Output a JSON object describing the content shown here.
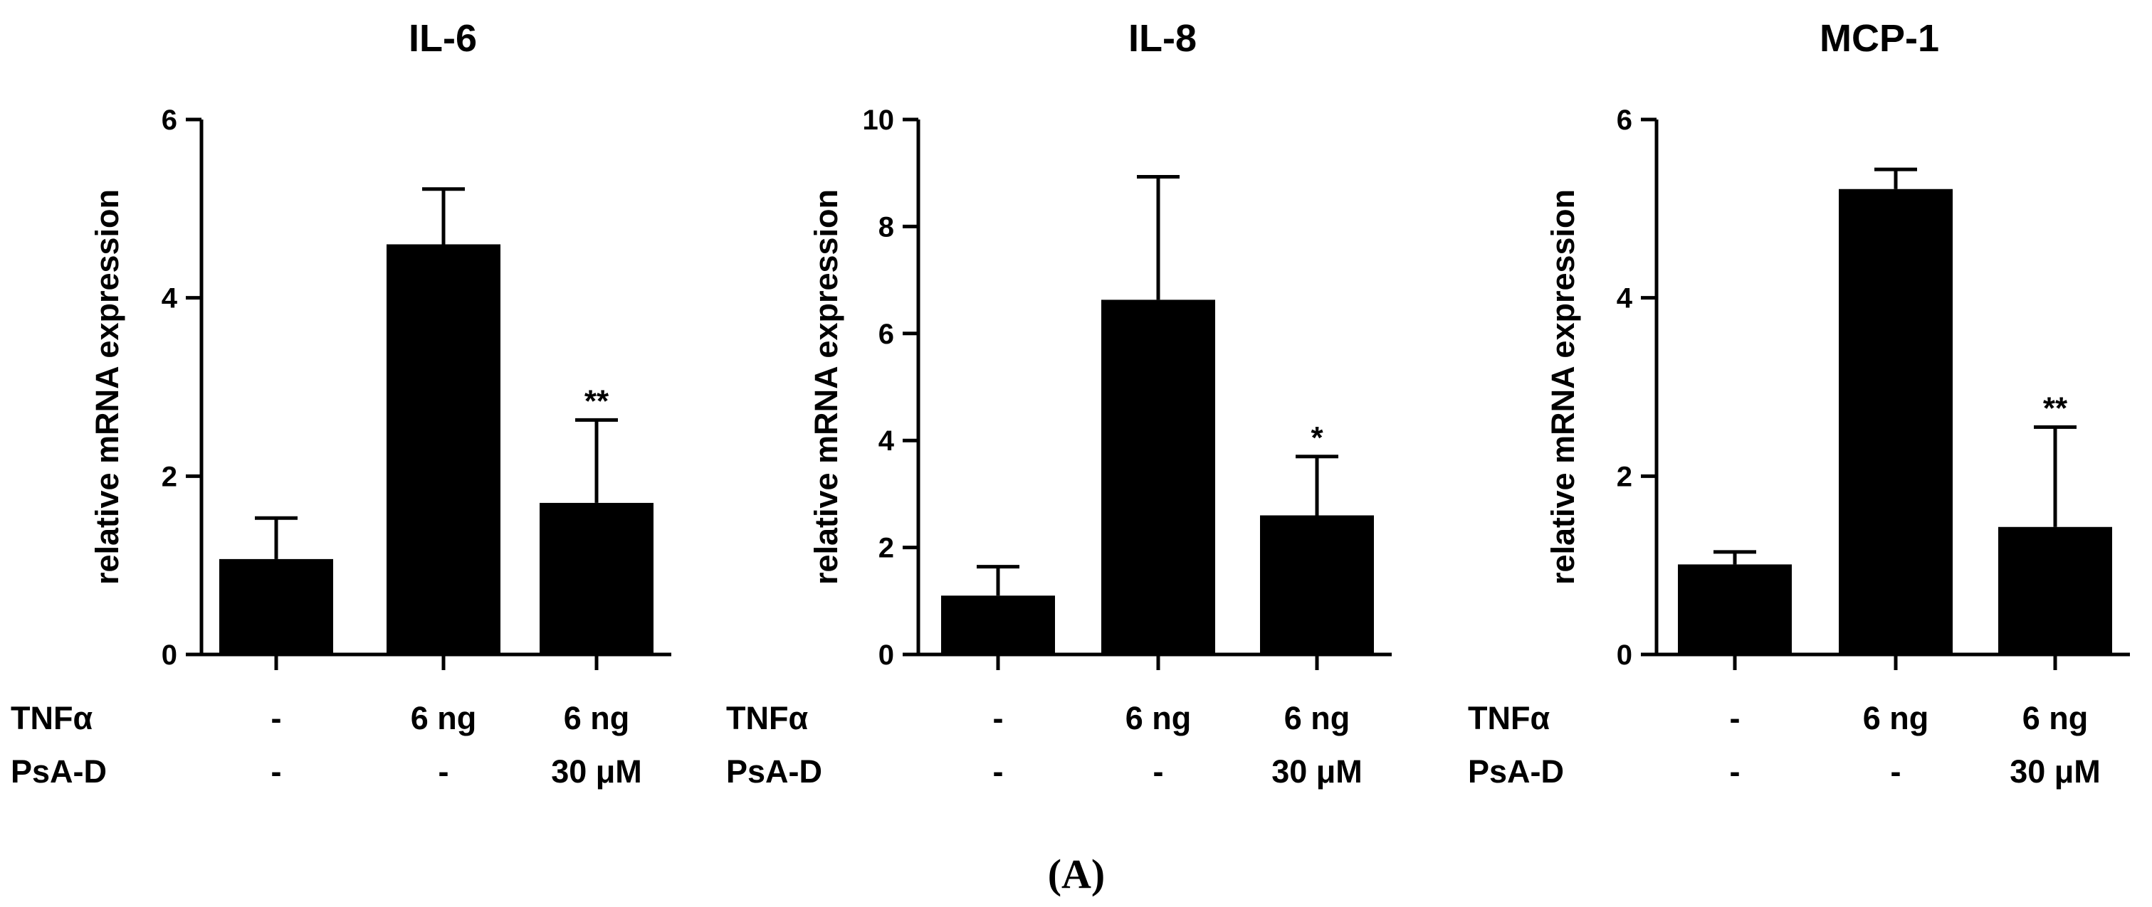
{
  "figure_label": "(A)",
  "chart_data": [
    {
      "type": "bar",
      "title": "IL-6",
      "xlabel": "",
      "ylabel": "relative mRNA expression",
      "ylim": [
        0,
        6
      ],
      "yticks": [
        "0",
        "2",
        "4",
        "6"
      ],
      "conditions": [
        {
          "name": "TNFα",
          "values": [
            "-",
            "6 ng",
            "6 ng"
          ]
        },
        {
          "name": "PsA-D",
          "values": [
            "-",
            "-",
            "30 μM"
          ]
        }
      ],
      "values": [
        1.07,
        4.6,
        1.7
      ],
      "errors": [
        0.46,
        0.62,
        0.93
      ],
      "significance": [
        "",
        "",
        "**"
      ]
    },
    {
      "type": "bar",
      "title": "IL-8",
      "xlabel": "",
      "ylabel": "relative mRNA expression",
      "ylim": [
        0,
        10
      ],
      "yticks": [
        "0",
        "2",
        "4",
        "6",
        "8",
        "10"
      ],
      "conditions": [
        {
          "name": "TNFα",
          "values": [
            "-",
            "6 ng",
            "6 ng"
          ]
        },
        {
          "name": "PsA-D",
          "values": [
            "-",
            "-",
            "30 μM"
          ]
        }
      ],
      "values": [
        1.1,
        6.63,
        2.6
      ],
      "errors": [
        0.54,
        2.3,
        1.1
      ],
      "significance": [
        "",
        "",
        "*"
      ]
    },
    {
      "type": "bar",
      "title": "MCP-1",
      "xlabel": "",
      "ylabel": "relative mRNA expression",
      "ylim": [
        0,
        6
      ],
      "yticks": [
        "0",
        "2",
        "4",
        "6"
      ],
      "conditions": [
        {
          "name": "TNFα",
          "values": [
            "-",
            "6 ng",
            "6 ng"
          ]
        },
        {
          "name": "PsA-D",
          "values": [
            "-",
            "-",
            "30 μM"
          ]
        }
      ],
      "values": [
        1.01,
        5.22,
        1.43
      ],
      "errors": [
        0.14,
        0.22,
        1.12
      ],
      "significance": [
        "",
        "",
        "**"
      ]
    }
  ]
}
